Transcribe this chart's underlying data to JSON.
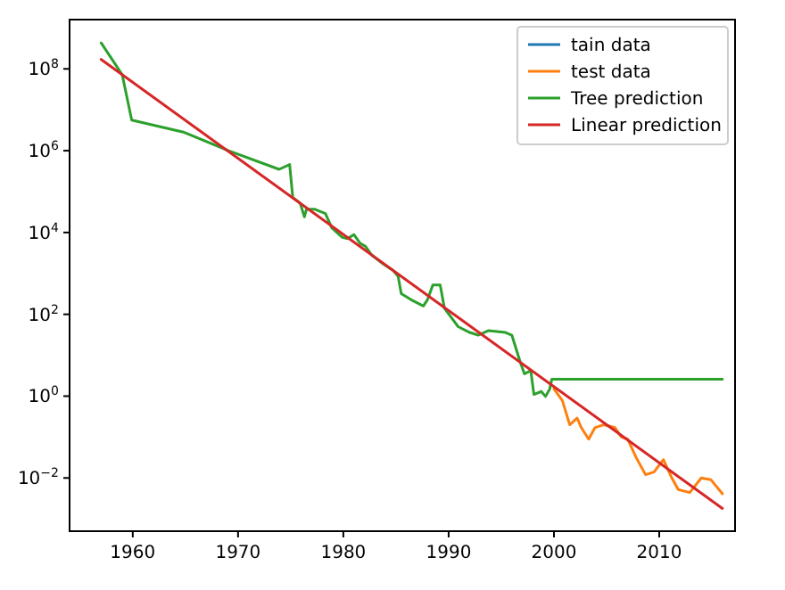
{
  "chart_data": {
    "type": "line",
    "log": "y",
    "xlim": [
      1954,
      2017.2
    ],
    "ylim": [
      0.0005,
      1600000000.0
    ],
    "xticks": [
      1960,
      1970,
      1980,
      1990,
      2000,
      2010
    ],
    "yticks": [
      {
        "value": 0.01,
        "label": "10$^{−2}$"
      },
      {
        "value": 1,
        "label": "10$^{0}$"
      },
      {
        "value": 100,
        "label": "10$^{2}$"
      },
      {
        "value": 10000,
        "label": "10$^{4}$"
      },
      {
        "value": 1000000,
        "label": "10$^{6}$"
      },
      {
        "value": 100000000,
        "label": "10$^{8}$"
      }
    ],
    "grid": false,
    "legend": "top right",
    "line_style": "solid",
    "marker": "none",
    "series": [
      {
        "name": "tain data",
        "color": "#1f77b4"
      },
      {
        "name": "test data",
        "color": "#ff7f0e",
        "x": [
          2000.0,
          2000.8,
          2001.5,
          2002.2,
          2002.6,
          2003.3,
          2003.9,
          2004.7,
          2005.8,
          2006.4,
          2007.0,
          2007.8,
          2008.7,
          2009.5,
          2010.4,
          2011.2,
          2011.8,
          2012.9,
          2014.0,
          2014.9,
          2016.0
        ],
        "values": [
          1.5,
          0.78,
          0.2,
          0.29,
          0.17,
          0.089,
          0.17,
          0.2,
          0.17,
          0.1,
          0.089,
          0.032,
          0.012,
          0.014,
          0.028,
          0.01,
          0.0052,
          0.0044,
          0.01,
          0.0091,
          0.0041
        ]
      },
      {
        "name": "Tree prediction",
        "color": "#2ca02c",
        "x": [
          1957.0,
          1959.0,
          1959.9,
          1964.9,
          1969.1,
          1973.9,
          1974.9,
          1975.2,
          1975.9,
          1976.3,
          1976.5,
          1977.3,
          1978.3,
          1978.9,
          1979.9,
          1980.4,
          1981.0,
          1981.6,
          1982.1,
          1982.7,
          1983.8,
          1984.7,
          1985.2,
          1985.5,
          1986.4,
          1987.6,
          1988.0,
          1988.5,
          1989.2,
          1989.6,
          1990.9,
          1992.0,
          1992.8,
          1993.8,
          1995.4,
          1996.0,
          1996.8,
          1997.2,
          1997.8,
          1998.1,
          1998.8,
          1999.2,
          1999.6,
          1999.8,
          2016.0
        ],
        "values": [
          430000000.0,
          72000000.0,
          5600000.0,
          2800000.0,
          1000000.0,
          350000.0,
          460000.0,
          71000.0,
          52000.0,
          24000.0,
          37000.0,
          37000.0,
          29000.0,
          13000.0,
          7600,
          7100,
          8900,
          5400,
          4600,
          2800,
          1700,
          1200,
          850,
          320,
          230,
          160,
          230,
          520,
          520,
          140,
          50,
          36,
          31,
          40,
          36,
          31,
          6.8,
          3.5,
          4.2,
          1.1,
          1.3,
          0.98,
          1.5,
          2.6,
          2.6
        ]
      },
      {
        "name": "Linear prediction",
        "color": "#d62728",
        "x": [
          1957.0,
          2016.0
        ],
        "values": [
          170000000.0,
          0.0018
        ]
      }
    ]
  }
}
